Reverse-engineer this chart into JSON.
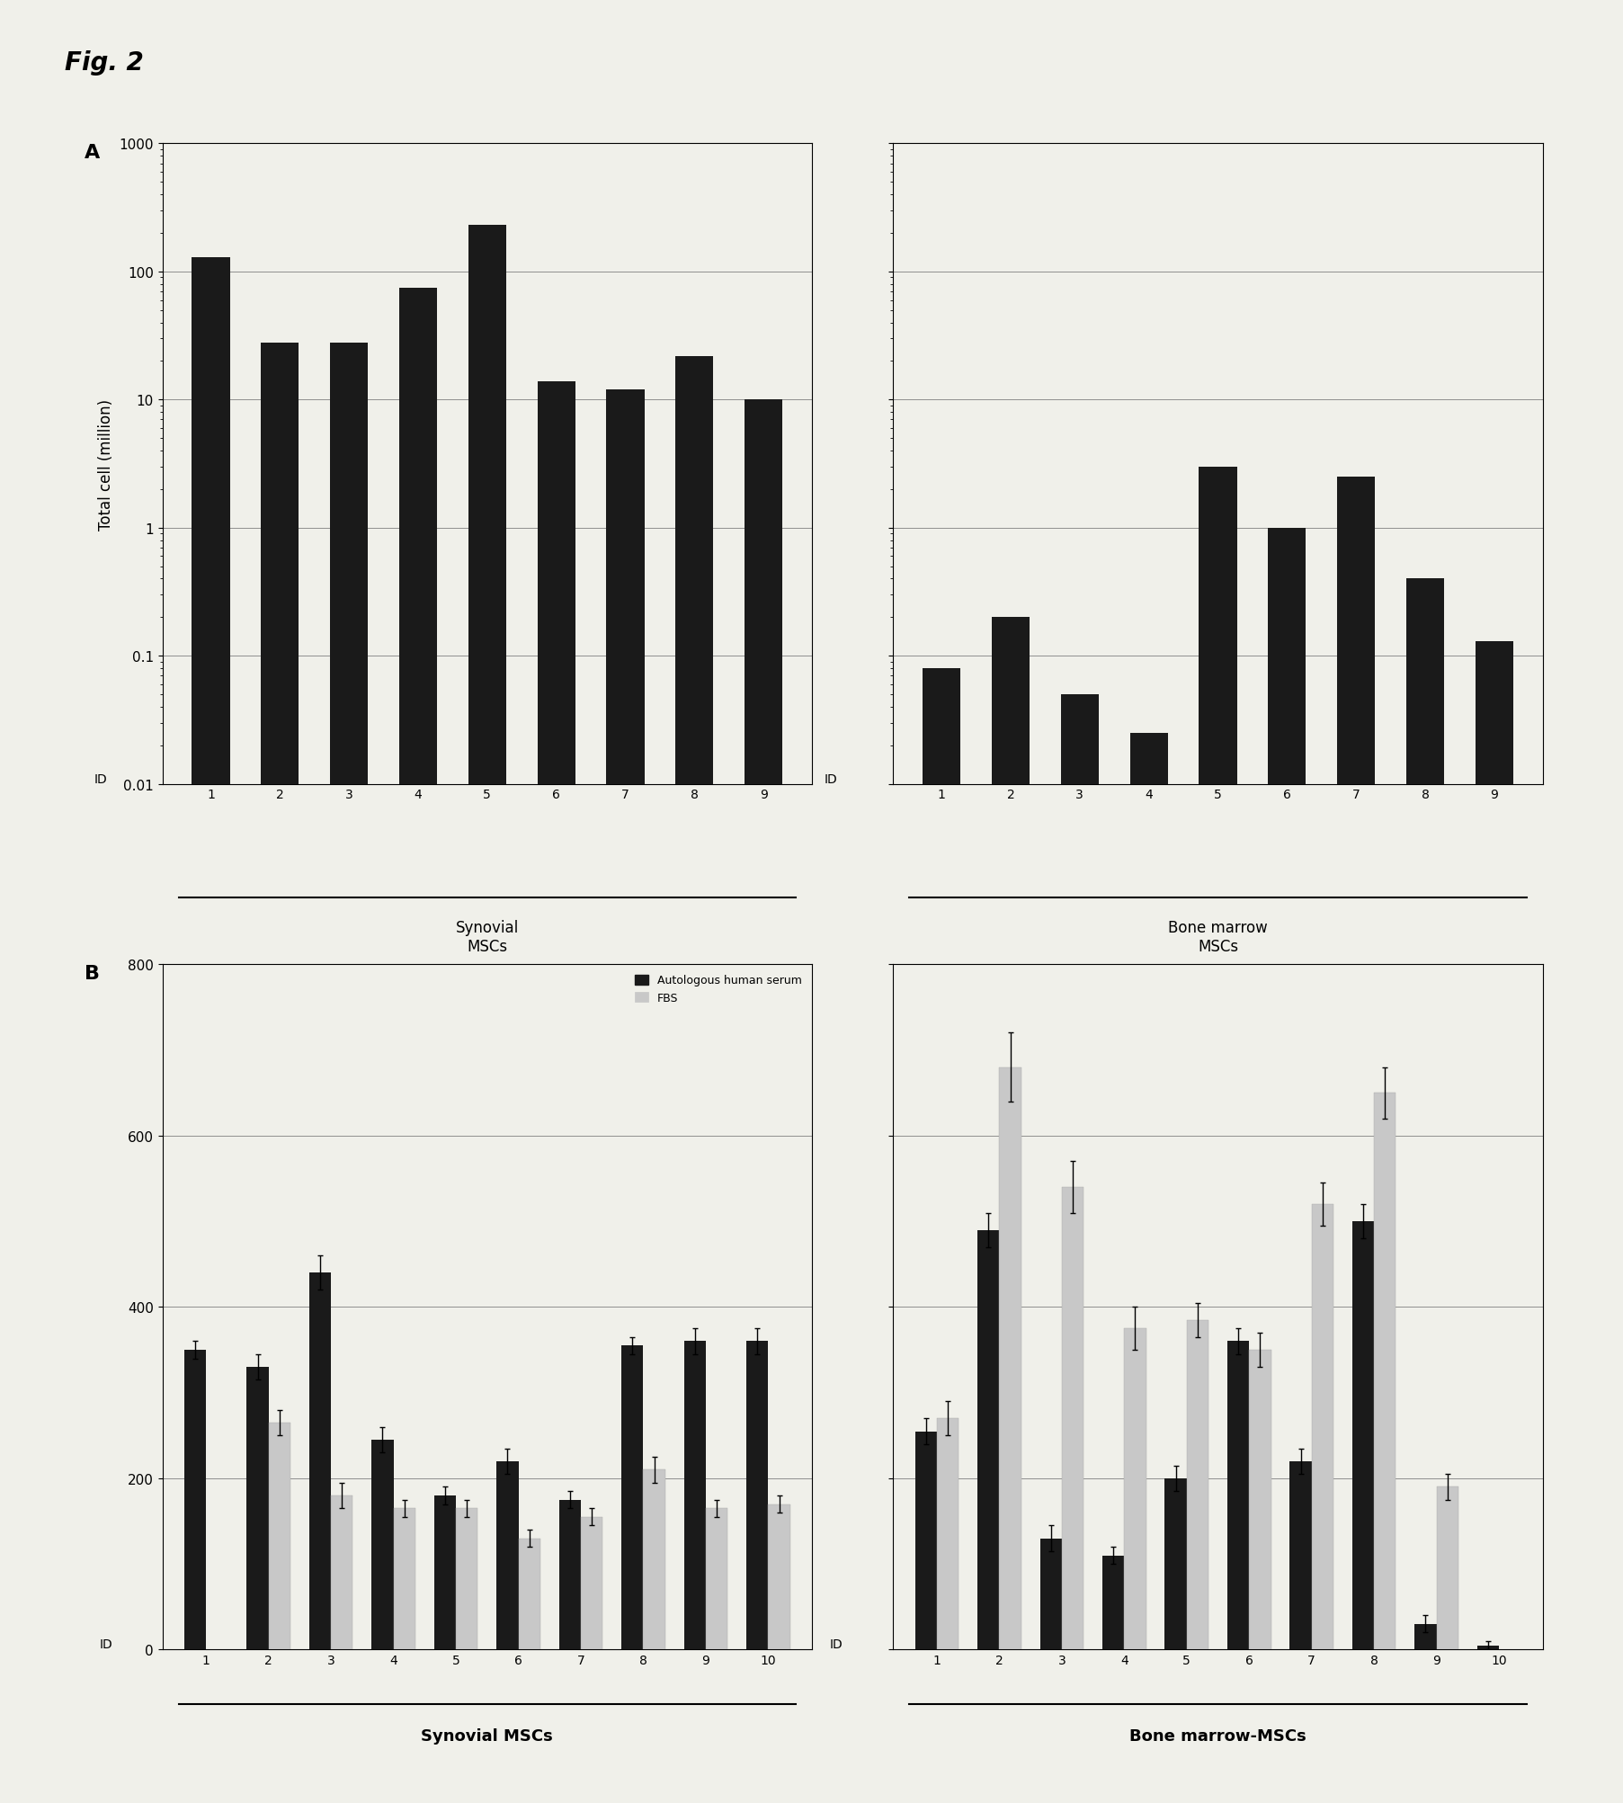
{
  "fig_title": "Fig. 2",
  "panel_A": {
    "label": "A",
    "ylabel": "Total cell (million)",
    "ylim_log": [
      0.01,
      1000
    ],
    "yticks": [
      0.01,
      0.1,
      1,
      10,
      100,
      1000
    ],
    "ytick_labels": [
      "0.01",
      "0.1",
      "1",
      "10",
      "100",
      "1000"
    ],
    "synovial_ids": [
      1,
      2,
      3,
      4,
      5,
      6,
      7,
      8,
      9
    ],
    "synovial_values": [
      130,
      28,
      28,
      75,
      230,
      14,
      12,
      22,
      10
    ],
    "bonemarrow_ids": [
      1,
      2,
      3,
      4,
      5,
      6,
      7,
      8,
      9
    ],
    "bonemarrow_values": [
      0.08,
      0.2,
      0.05,
      0.025,
      3.0,
      1.0,
      2.5,
      0.4,
      0.13
    ],
    "group_label_syn": "Synovial\nMSCs",
    "group_label_bm": "Bone marrow\nMSCs",
    "bar_color": "#1a1a1a"
  },
  "panel_B": {
    "label": "B",
    "ylim": [
      0,
      800
    ],
    "yticks": [
      0,
      200,
      400,
      600,
      800
    ],
    "synovial_ids": [
      1,
      2,
      3,
      4,
      5,
      6,
      7,
      8,
      9,
      10
    ],
    "synovial_AHS": [
      350,
      330,
      440,
      245,
      180,
      220,
      175,
      355,
      360,
      360
    ],
    "synovial_FBS": [
      0,
      265,
      180,
      165,
      165,
      130,
      155,
      210,
      165,
      170
    ],
    "synovial_AHS_err": [
      10,
      15,
      20,
      15,
      10,
      15,
      10,
      10,
      15,
      15
    ],
    "synovial_FBS_err": [
      0,
      15,
      15,
      10,
      10,
      10,
      10,
      15,
      10,
      10
    ],
    "bonemarrow_ids": [
      1,
      2,
      3,
      4,
      5,
      6,
      7,
      8,
      9,
      10
    ],
    "bonemarrow_AHS": [
      255,
      490,
      130,
      110,
      200,
      360,
      220,
      500,
      30,
      5
    ],
    "bonemarrow_FBS": [
      270,
      680,
      540,
      375,
      385,
      350,
      520,
      650,
      190,
      0
    ],
    "bonemarrow_AHS_err": [
      15,
      20,
      15,
      10,
      15,
      15,
      15,
      20,
      10,
      5
    ],
    "bonemarrow_FBS_err": [
      20,
      40,
      30,
      25,
      20,
      20,
      25,
      30,
      15,
      0
    ],
    "group_label_syn": "Synovial MSCs",
    "group_label_bm": "Bone marrow-MSCs",
    "color_AHS": "#1a1a1a",
    "color_FBS": "#c8c8c8",
    "legend_AHS": "Autologous human serum",
    "legend_FBS": "FBS"
  },
  "background_color": "#f0f0ea"
}
